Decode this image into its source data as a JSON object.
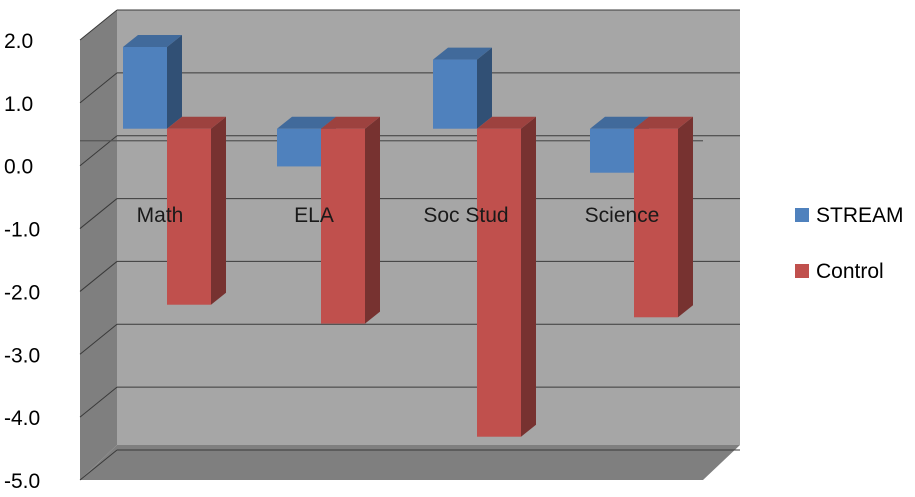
{
  "chart_data": {
    "type": "bar",
    "categories": [
      "Math",
      "ELA",
      "Soc Stud",
      "Science"
    ],
    "series": [
      {
        "name": "STREAM",
        "values": [
          1.3,
          -0.6,
          1.1,
          -0.7
        ],
        "color": "#4F81BD"
      },
      {
        "name": "Control",
        "values": [
          -2.8,
          -3.1,
          -4.9,
          -3.0
        ],
        "color": "#C0504D"
      }
    ],
    "yticks": [
      "2.0",
      "1.0",
      "0.0",
      "-1.0",
      "-2.0",
      "-3.0",
      "-4.0",
      "-5.0"
    ],
    "ylim": [
      -5.0,
      2.0
    ],
    "title": "",
    "xlabel": "",
    "ylabel": "",
    "grid": true,
    "style": "3d-column",
    "legend_position": "right"
  }
}
